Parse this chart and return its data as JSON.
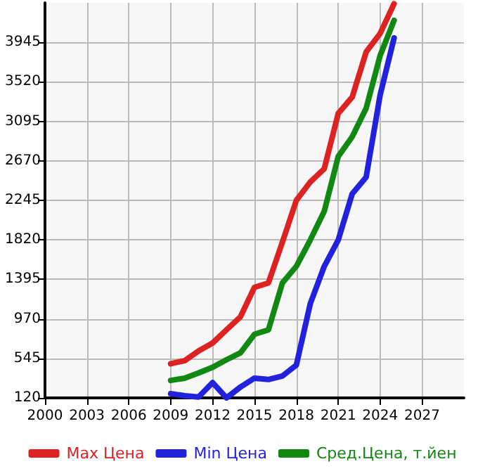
{
  "chart_data": {
    "type": "line",
    "xlim": [
      2000,
      2030
    ],
    "xticks": [
      2000,
      2003,
      2006,
      2009,
      2012,
      2015,
      2018,
      2021,
      2024,
      2027
    ],
    "ylim": [
      120,
      4370
    ],
    "yticks": [
      120,
      545,
      970,
      1395,
      1820,
      2245,
      2670,
      3095,
      3520,
      3945
    ],
    "grid": true,
    "legend": "bottom",
    "marker": "none",
    "line_style": "solid",
    "x": [
      2009,
      2010,
      2011,
      2012,
      2013,
      2014,
      2015,
      2016,
      2017,
      2018,
      2019,
      2020,
      2021,
      2022,
      2023,
      2024,
      2025
    ],
    "series": [
      {
        "name": "Max Цена",
        "color": "#dd2222",
        "values": [
          488,
          520,
          625,
          710,
          852,
          993,
          1309,
          1356,
          1795,
          2245,
          2443,
          2585,
          3180,
          3355,
          3841,
          4040,
          4360
        ]
      },
      {
        "name": "Min Цена",
        "color": "#2222dd",
        "values": [
          166,
          143,
          130,
          285,
          120,
          237,
          332,
          318,
          356,
          473,
          1135,
          1536,
          1819,
          2315,
          2495,
          3378,
          3992
        ]
      },
      {
        "name": "Сред.Цена, т.йен",
        "color": "#118811",
        "values": [
          308,
          332,
          388,
          449,
          530,
          605,
          804,
          852,
          1356,
          1536,
          1819,
          2127,
          2717,
          2929,
          3236,
          3803,
          4181
        ]
      }
    ]
  }
}
